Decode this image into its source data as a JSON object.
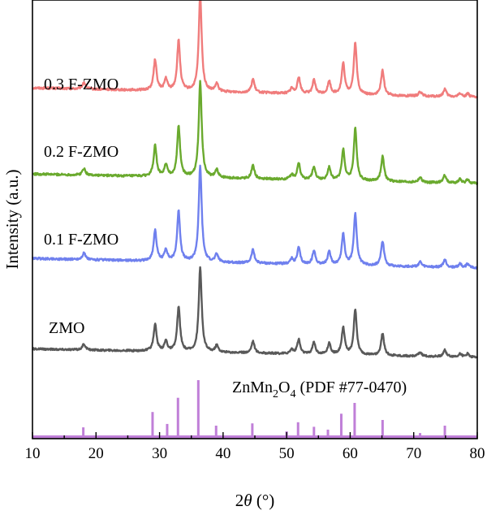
{
  "chart_data": {
    "type": "line",
    "xlabel_prefix": "2",
    "xlabel_symbol": "θ",
    "xlabel_suffix": " (°)",
    "ylabel": "Intensity (a.u.)",
    "xlim": [
      10,
      80
    ],
    "x_ticks": [
      "10",
      "20",
      "30",
      "40",
      "50",
      "60",
      "70",
      "80"
    ],
    "y_ticks_shown": false,
    "grid": false,
    "colors": {
      "0.3 F-ZMO": "#f07c7c",
      "0.2 F-ZMO": "#6aaa2e",
      "0.1 F-ZMO": "#6f80ee",
      "ZMO": "#595959",
      "reference": "#c07fd8"
    },
    "series": [
      {
        "name": "0.3 F-ZMO",
        "baseline_x": [
          10,
          80
        ],
        "baseline_y": [
          0.1,
          0.0
        ],
        "peaks": [
          [
            18.1,
            0.07
          ],
          [
            29.3,
            0.32
          ],
          [
            31.0,
            0.12
          ],
          [
            33.0,
            0.52
          ],
          [
            36.4,
            1.0
          ],
          [
            39.0,
            0.08
          ],
          [
            44.7,
            0.14
          ],
          [
            50.8,
            0.05
          ],
          [
            51.9,
            0.17
          ],
          [
            54.3,
            0.14
          ],
          [
            56.7,
            0.13
          ],
          [
            58.9,
            0.32
          ],
          [
            60.8,
            0.54
          ],
          [
            65.1,
            0.26
          ],
          [
            71.0,
            0.05
          ],
          [
            74.9,
            0.08
          ],
          [
            77.3,
            0.04
          ],
          [
            78.5,
            0.04
          ]
        ]
      },
      {
        "name": "0.2 F-ZMO",
        "baseline_x": [
          10,
          80
        ],
        "baseline_y": [
          0.1,
          0.0
        ],
        "peaks": [
          [
            18.1,
            0.07
          ],
          [
            29.3,
            0.32
          ],
          [
            31.0,
            0.12
          ],
          [
            33.0,
            0.52
          ],
          [
            36.4,
            1.0
          ],
          [
            39.0,
            0.08
          ],
          [
            44.7,
            0.14
          ],
          [
            50.8,
            0.05
          ],
          [
            51.9,
            0.17
          ],
          [
            54.3,
            0.14
          ],
          [
            56.7,
            0.13
          ],
          [
            58.9,
            0.32
          ],
          [
            60.8,
            0.54
          ],
          [
            65.1,
            0.26
          ],
          [
            71.0,
            0.05
          ],
          [
            74.9,
            0.08
          ],
          [
            77.3,
            0.04
          ],
          [
            78.5,
            0.04
          ]
        ]
      },
      {
        "name": "0.1 F-ZMO",
        "baseline_x": [
          10,
          80
        ],
        "baseline_y": [
          0.1,
          0.0
        ],
        "peaks": [
          [
            18.1,
            0.07
          ],
          [
            29.3,
            0.32
          ],
          [
            31.0,
            0.12
          ],
          [
            33.0,
            0.52
          ],
          [
            36.4,
            1.0
          ],
          [
            39.0,
            0.08
          ],
          [
            44.7,
            0.14
          ],
          [
            50.8,
            0.05
          ],
          [
            51.9,
            0.17
          ],
          [
            54.3,
            0.14
          ],
          [
            56.7,
            0.13
          ],
          [
            58.9,
            0.32
          ],
          [
            60.8,
            0.54
          ],
          [
            65.1,
            0.26
          ],
          [
            71.0,
            0.05
          ],
          [
            74.9,
            0.08
          ],
          [
            77.3,
            0.04
          ],
          [
            78.5,
            0.04
          ]
        ]
      },
      {
        "name": "ZMO",
        "baseline_x": [
          10,
          80
        ],
        "baseline_y": [
          0.1,
          0.0
        ],
        "peaks": [
          [
            18.1,
            0.07
          ],
          [
            29.3,
            0.32
          ],
          [
            31.0,
            0.12
          ],
          [
            33.0,
            0.52
          ],
          [
            36.4,
            1.0
          ],
          [
            39.0,
            0.08
          ],
          [
            44.7,
            0.14
          ],
          [
            50.8,
            0.05
          ],
          [
            51.9,
            0.17
          ],
          [
            54.3,
            0.14
          ],
          [
            56.7,
            0.13
          ],
          [
            58.9,
            0.32
          ],
          [
            60.8,
            0.54
          ],
          [
            65.1,
            0.26
          ],
          [
            71.0,
            0.05
          ],
          [
            74.9,
            0.08
          ],
          [
            77.3,
            0.04
          ],
          [
            78.5,
            0.04
          ]
        ]
      }
    ],
    "reference": {
      "label_parts": [
        "ZnMn",
        "2",
        "O",
        "4",
        " (PDF #77-0470)"
      ],
      "lines": [
        [
          18.0,
          0.17
        ],
        [
          28.9,
          0.44
        ],
        [
          31.2,
          0.23
        ],
        [
          32.9,
          0.69
        ],
        [
          36.1,
          1.0
        ],
        [
          38.9,
          0.2
        ],
        [
          44.6,
          0.24
        ],
        [
          50.0,
          0.1
        ],
        [
          51.8,
          0.26
        ],
        [
          54.3,
          0.18
        ],
        [
          56.5,
          0.13
        ],
        [
          58.6,
          0.41
        ],
        [
          60.7,
          0.6
        ],
        [
          65.1,
          0.3
        ],
        [
          71.0,
          0.07
        ],
        [
          74.9,
          0.2
        ]
      ]
    }
  }
}
